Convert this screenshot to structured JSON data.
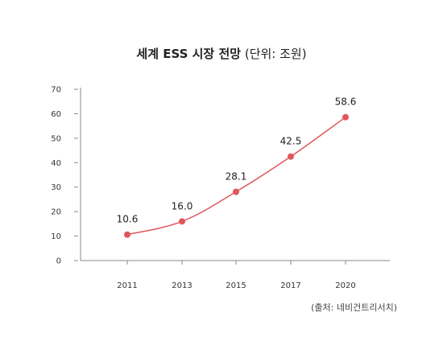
{
  "chart_data": {
    "type": "line",
    "title": "세계 ESS 시장 전망",
    "title_unit": "(단위: 조원)",
    "source": "(출처: 네비건트리서치)",
    "categories": [
      "2011",
      "2013",
      "2015",
      "2017",
      "2020"
    ],
    "series": [
      {
        "values": [
          10.6,
          16.0,
          28.1,
          42.5,
          58.6
        ],
        "color": "#e0565b"
      }
    ],
    "data_labels": [
      "10.6",
      "16.0",
      "28.1",
      "42.5",
      "58.6"
    ],
    "ylim": [
      0,
      70
    ],
    "yticks": [
      0,
      10,
      20,
      30,
      40,
      50,
      60,
      70
    ],
    "grid": false,
    "axis_color": "#888888"
  }
}
